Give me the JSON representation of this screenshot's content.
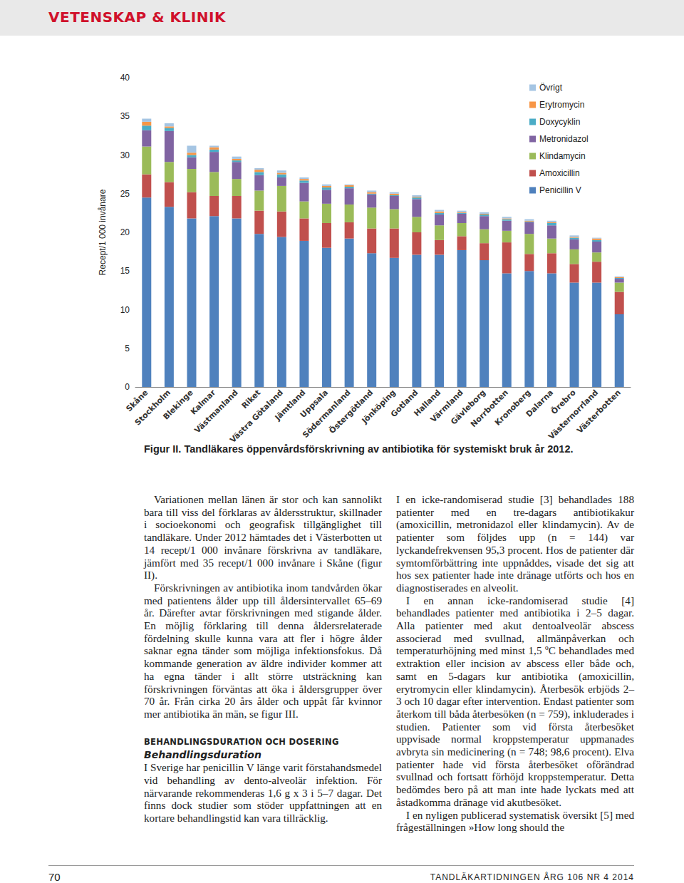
{
  "header": "VETENSKAP & KLINIK",
  "chart_data": {
    "type": "bar",
    "stacked": true,
    "grid": false,
    "legend": "top-right",
    "y_label": "Recept/1 000 invånare",
    "ylim": [
      0,
      40
    ],
    "yticks": [
      0,
      5,
      10,
      15,
      20,
      25,
      30,
      35,
      40
    ],
    "categories": [
      "Skåne",
      "Stockholm",
      "Blekinge",
      "Kalmar",
      "Västmanland",
      "Riket",
      "Västra Götaland",
      "Jämtland",
      "Uppsala",
      "Södermanland",
      "Östergötland",
      "Jönköping",
      "Gotland",
      "Halland",
      "Värmland",
      "Gävleborg",
      "Norrbotten",
      "Kronoberg",
      "Dalarna",
      "Örebro",
      "Västernorrland",
      "Västerbotten"
    ],
    "series": [
      {
        "name": "Penicillin V",
        "color": "#4f81bd",
        "values": [
          24.5,
          23.3,
          21.8,
          22.1,
          21.8,
          19.8,
          19.4,
          18.9,
          18.0,
          19.2,
          17.3,
          16.7,
          17.1,
          17.1,
          17.7,
          16.4,
          14.7,
          15.0,
          14.7,
          13.5,
          13.5,
          9.4
        ]
      },
      {
        "name": "Amoxicillin",
        "color": "#c0504d",
        "values": [
          3.0,
          3.2,
          3.4,
          2.6,
          2.9,
          3.0,
          3.3,
          2.9,
          3.2,
          2.1,
          3.2,
          3.8,
          2.9,
          1.9,
          1.8,
          2.2,
          4.0,
          2.2,
          2.6,
          2.4,
          2.7,
          2.9
        ]
      },
      {
        "name": "Klindamycin",
        "color": "#9bbb59",
        "values": [
          3.6,
          2.6,
          3.0,
          3.1,
          2.2,
          2.6,
          3.3,
          2.2,
          2.5,
          2.3,
          2.7,
          2.5,
          2.0,
          1.9,
          1.7,
          1.8,
          1.5,
          2.6,
          1.9,
          1.9,
          1.2,
          1.2
        ]
      },
      {
        "name": "Metronidazol",
        "color": "#8064a2",
        "values": [
          2.1,
          4.0,
          1.5,
          2.6,
          2.2,
          2.0,
          1.1,
          2.4,
          1.8,
          2.1,
          1.7,
          1.7,
          2.3,
          1.4,
          1.2,
          1.7,
          1.3,
          1.5,
          1.7,
          1.3,
          1.4,
          0.5
        ]
      },
      {
        "name": "Doxycyklin",
        "color": "#4bacc6",
        "values": [
          0.6,
          0.4,
          0.3,
          0.3,
          0.2,
          0.4,
          0.4,
          0.3,
          0.3,
          0.2,
          0.1,
          0.1,
          0.2,
          0.2,
          0.1,
          0.2,
          0.2,
          0.1,
          0.3,
          0.2,
          0.2,
          0.1
        ]
      },
      {
        "name": "Erytromycin",
        "color": "#f79646",
        "values": [
          0.5,
          0.2,
          0.3,
          0.3,
          0.2,
          0.3,
          0.2,
          0.2,
          0.2,
          0.2,
          0.2,
          0.2,
          0.1,
          0.2,
          0.1,
          0.1,
          0.1,
          0.1,
          0.1,
          0.1,
          0.2,
          0.1
        ]
      },
      {
        "name": "Övrigt",
        "color": "#a5c5e3",
        "values": [
          0.4,
          0.4,
          0.9,
          0.2,
          0.3,
          0.2,
          0.3,
          0.2,
          0.2,
          0.1,
          0.2,
          0.2,
          0.2,
          0.2,
          0.2,
          0.2,
          0.2,
          0.2,
          0.2,
          0.2,
          0.1,
          0.1
        ]
      }
    ]
  },
  "caption": "Figur II. Tandläkares öppenvårdsförskrivning av antibiotika för systemiskt bruk år 2012.",
  "body": {
    "left": [
      {
        "p": "Variationen mellan länen är stor och kan sannolikt bara till viss del förklaras av åldersstruktur, skillnader i socioekonomi och geografisk tillgänglighet till tandläkare. Under 2012 hämtades det i Västerbotten ut 14 recept/1 000 invånare förskrivna av tandläkare, jämfört med 35 recept/1 000 invånare i Skåne (figur II)."
      },
      {
        "p": "Förskrivningen av antibiotika inom tandvården ökar med patientens ålder upp till åldersintervallet 65–69 år. Därefter avtar förskrivningen med stigande ålder. En möjlig förklaring till denna åldersrelaterade fördelning skulle kunna vara att fler i högre ålder saknar egna tänder som möjliga infektionsfokus. Då kommande generation av äldre individer kommer att ha egna tänder i allt större utsträckning kan förskrivningen förväntas att öka i åldersgrupper över 70 år. Från cirka 20 års ålder och uppåt får kvinnor mer antibiotika än män, se figur III."
      },
      {
        "h": "BEHANDLINGSDURATION OCH DOSERING"
      },
      {
        "sub": "Behandlingsduration"
      },
      {
        "p": "I Sverige har penicillin V länge varit förstahandsmedel vid behandling av dento-alveolär infektion. För närvarande rekommenderas 1,6 g x 3 i 5–7 dagar. Det finns dock studier som stöder uppfattningen att en kortare behandlingstid kan vara tillräcklig."
      }
    ],
    "right": [
      {
        "p": "I en icke-randomiserad studie [3] behandlades 188 patienter med en tre-dagars antibiotikakur (amoxicillin, metronidazol eller klindamycin). Av de patienter som följdes upp (n = 144) var lyckandefrekvensen 95,3 procent. Hos de patienter där symtomförbättring inte uppnåddes, visade det sig att hos sex patienter hade inte dränage utförts och hos en diagnostiserades en alveolit."
      },
      {
        "p": "I en annan icke-randomiserad studie [4] behandlades patienter med antibiotika i 2–5 dagar. Alla patienter med akut dentoalveolär abscess associerad med svullnad, allmänpåverkan och temperaturhöjning med minst 1,5 ºC behandlades med extraktion eller incision av abscess eller både och, samt en 5-dagars kur antibiotika (amoxicillin, erytromycin eller klindamycin). Återbesök erbjöds 2–3 och 10 dagar efter intervention. Endast patienter som återkom till båda återbesöken (n = 759), inkluderades i studien. Patienter som vid första återbesöket uppvisade normal kroppstemperatur uppmanades avbryta sin medicinering (n = 748; 98,6 procent). Elva patienter hade vid första återbesöket oförändrad svullnad och fortsatt förhöjd kroppstemperatur. Detta bedömdes bero på att man inte hade lyckats med att åstadkomma dränage vid akutbesöket."
      },
      {
        "p": "I en nyligen publicerad systematisk översikt [5] med frågeställningen »How long should the"
      }
    ]
  },
  "footer": {
    "page": "70",
    "journal": "TANDLÄKARTIDNINGEN ÅRG 106 NR 4 2014"
  }
}
